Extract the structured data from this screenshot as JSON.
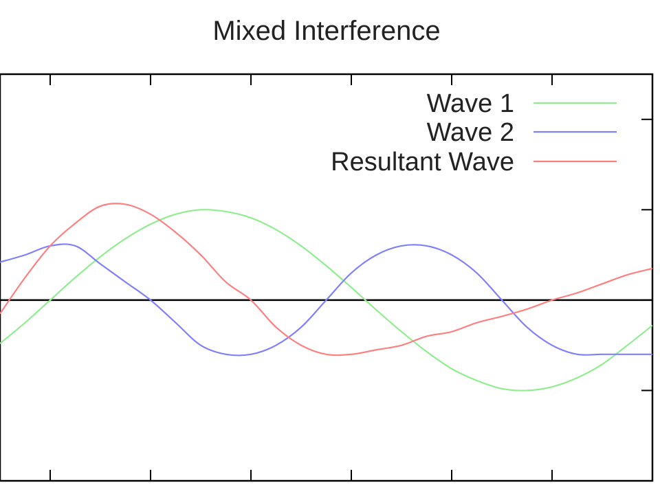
{
  "chart_data": {
    "type": "line",
    "title": "Mixed Interference",
    "xlabel": "",
    "ylabel": "",
    "xlim": [
      -0.5,
      6.0
    ],
    "ylim": [
      -2.0,
      2.5
    ],
    "grid": false,
    "legend_position": "top-right",
    "zero_line": true,
    "series": [
      {
        "name": "Wave 1",
        "color": "#90ee90",
        "x": [
          -0.5,
          -0.25,
          0.0,
          0.25,
          0.5,
          0.75,
          1.0,
          1.25,
          1.5,
          1.75,
          2.0,
          2.25,
          2.5,
          2.75,
          3.0,
          3.25,
          3.5,
          3.75,
          4.0,
          4.25,
          4.5,
          4.75,
          5.0,
          5.25,
          5.5,
          5.75,
          6.0
        ],
        "y": [
          -0.48,
          -0.25,
          0.0,
          0.25,
          0.48,
          0.68,
          0.84,
          0.95,
          1.0,
          0.98,
          0.91,
          0.78,
          0.6,
          0.38,
          0.14,
          -0.11,
          -0.35,
          -0.57,
          -0.76,
          -0.89,
          -0.98,
          -1.0,
          -0.96,
          -0.86,
          -0.71,
          -0.5,
          -0.28
        ]
      },
      {
        "name": "Wave 2",
        "color": "#0000ff",
        "x": [
          -0.5,
          -0.25,
          0.0,
          0.25,
          0.5,
          0.75,
          1.0,
          1.25,
          1.5,
          1.75,
          2.0,
          2.25,
          2.5,
          2.75,
          3.0,
          3.25,
          3.5,
          3.75,
          4.0,
          4.25,
          4.5,
          4.75,
          5.0,
          5.25,
          5.5,
          5.75,
          6.0
        ],
        "y": [
          0.42,
          0.5,
          0.6,
          0.6,
          0.4,
          0.2,
          0.0,
          -0.25,
          -0.5,
          -0.6,
          -0.6,
          -0.5,
          -0.3,
          0.0,
          0.3,
          0.5,
          0.6,
          0.6,
          0.5,
          0.3,
          0.0,
          -0.3,
          -0.5,
          -0.6,
          -0.6,
          -0.6,
          -0.6
        ]
      },
      {
        "name": "Resultant Wave",
        "color": "#ff0000",
        "x": [
          -0.5,
          -0.25,
          0.0,
          0.25,
          0.5,
          0.75,
          1.0,
          1.25,
          1.5,
          1.75,
          2.0,
          2.25,
          2.5,
          2.75,
          3.0,
          3.25,
          3.5,
          3.75,
          4.0,
          4.25,
          4.5,
          4.75,
          5.0,
          5.25,
          5.5,
          5.75,
          6.0
        ],
        "y": [
          -0.15,
          0.25,
          0.6,
          0.85,
          1.04,
          1.06,
          0.95,
          0.75,
          0.5,
          0.2,
          0.0,
          -0.3,
          -0.5,
          -0.6,
          -0.6,
          -0.55,
          -0.5,
          -0.4,
          -0.35,
          -0.25,
          -0.18,
          -0.1,
          0.0,
          0.08,
          0.18,
          0.28,
          0.35
        ]
      }
    ]
  }
}
